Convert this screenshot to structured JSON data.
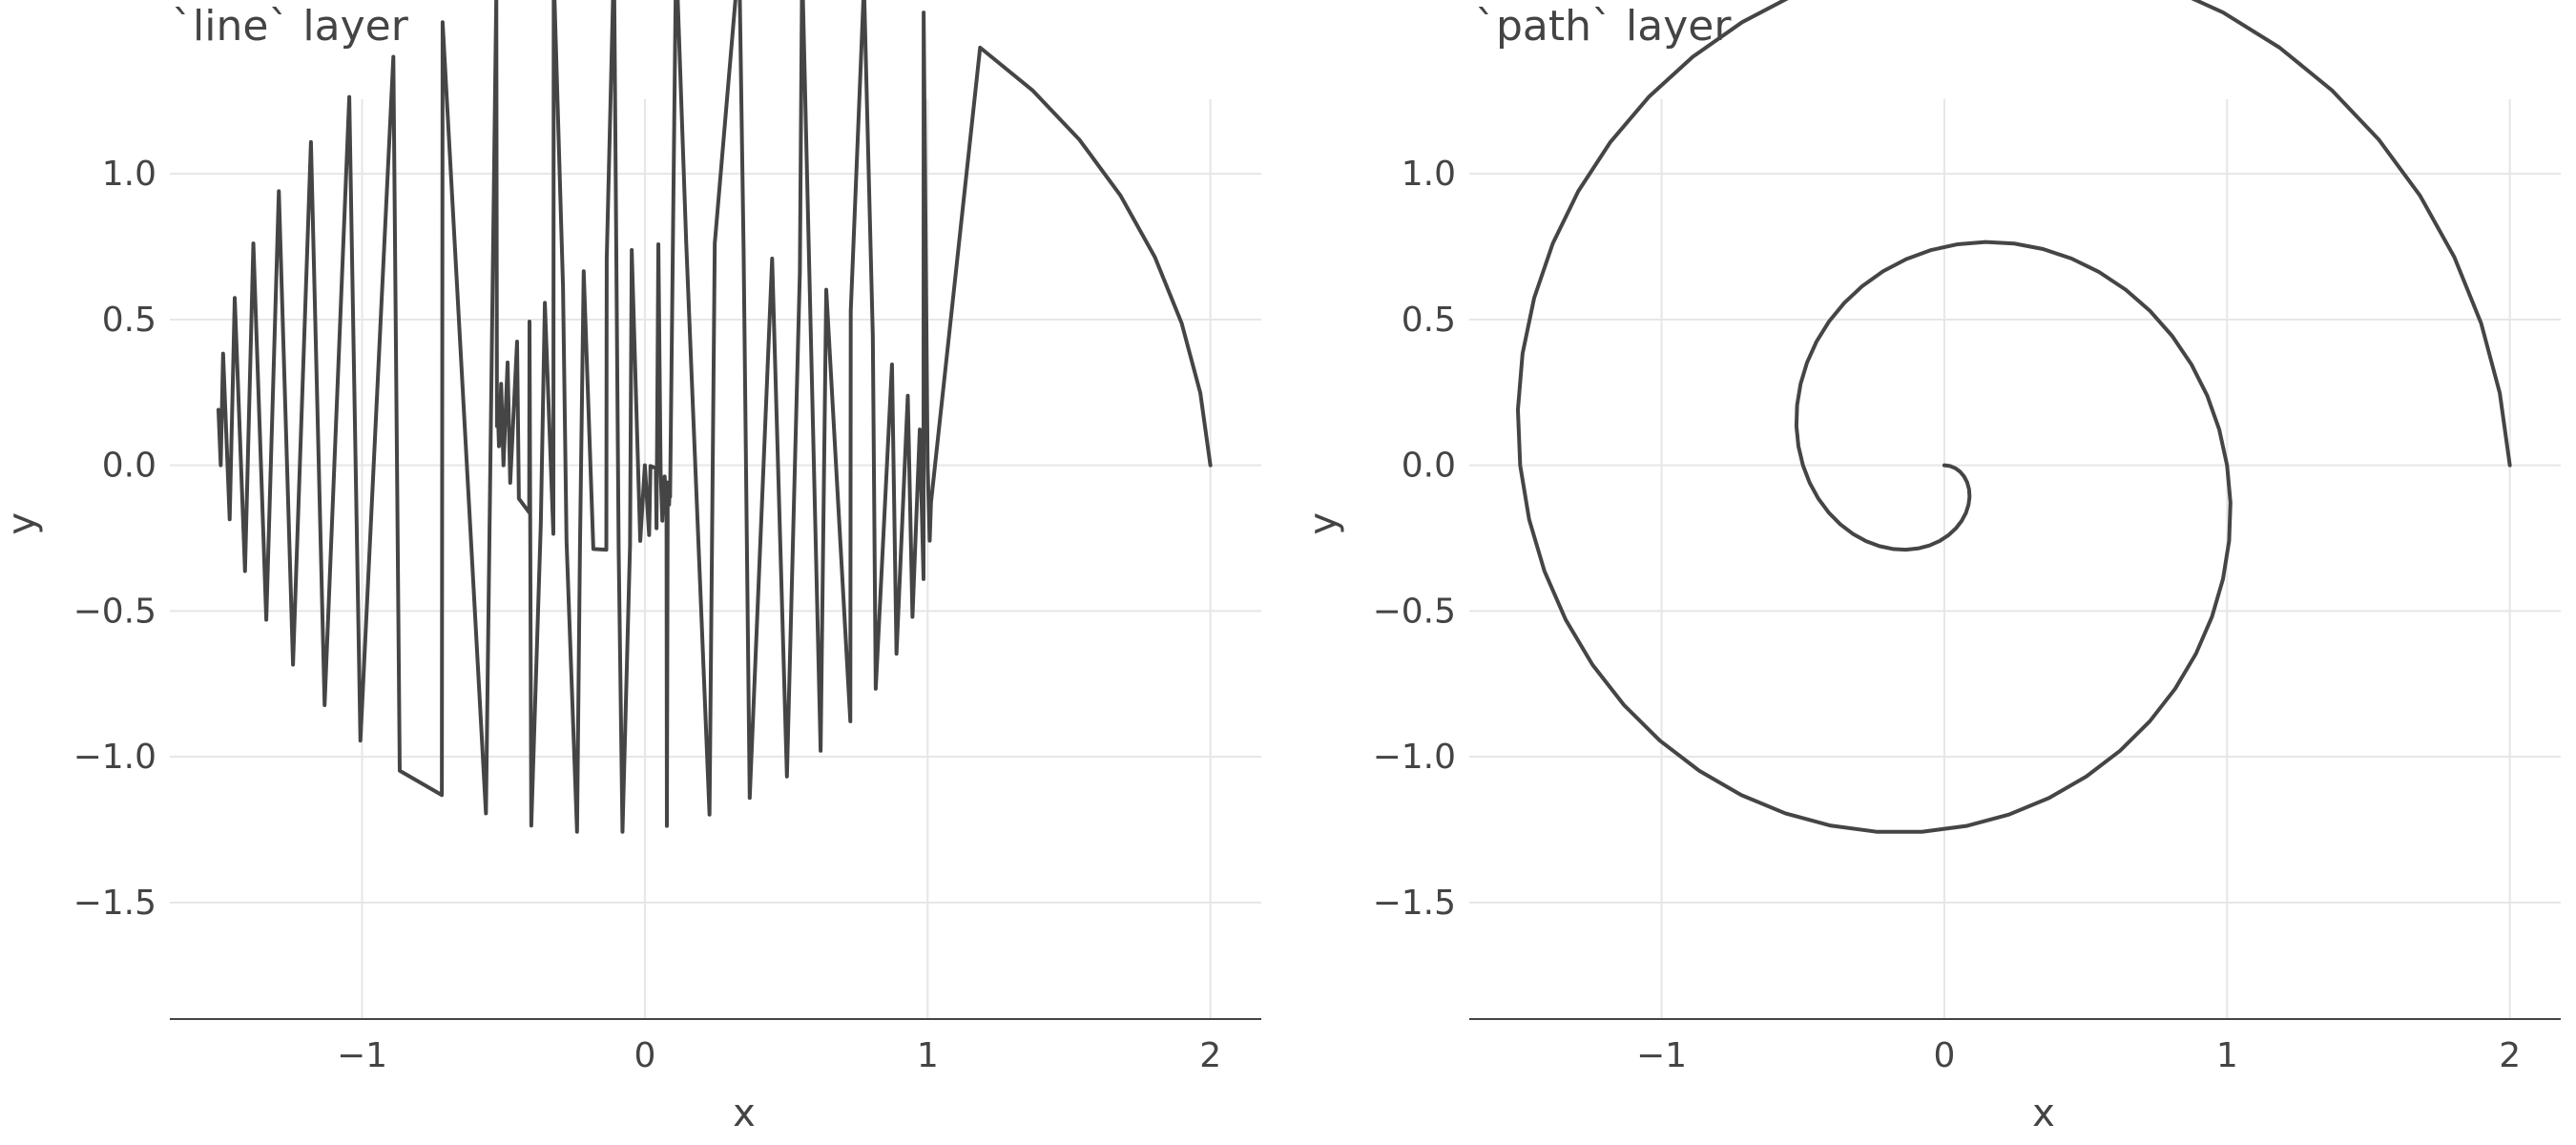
{
  "chart_data": [
    {
      "type": "line",
      "title": "`line` layer",
      "xlabel": "x",
      "ylabel": "y",
      "xlim": [
        -1.68,
        2.18
      ],
      "ylim": [
        -1.9,
        1.4
      ],
      "xticks": [
        -1,
        0,
        1,
        2
      ],
      "yticks": [
        -1.5,
        -1.0,
        -0.5,
        0.0,
        0.5,
        1.0
      ],
      "xtick_labels": [
        "−1",
        "0",
        "1",
        "2"
      ],
      "ytick_labels": [
        "−1.5",
        "−1.0",
        "−0.5",
        "0.0",
        "0.5",
        "1.0"
      ],
      "grid": true,
      "line_color": "#454545",
      "series": [
        {
          "description_of_values": "spiral points x = r·cos(t), y = r·sin(t) with r = 2 − t/(2π) for t in [0, 4π], joined in order of increasing x",
          "r_start": 2,
          "t_end_turns": 2,
          "n_points": 101
        }
      ]
    },
    {
      "type": "line",
      "title": "`path` layer",
      "xlabel": "x",
      "ylabel": "y",
      "xlim": [
        -1.68,
        2.18
      ],
      "ylim": [
        -1.9,
        1.4
      ],
      "xticks": [
        -1,
        0,
        1,
        2
      ],
      "yticks": [
        -1.5,
        -1.0,
        -0.5,
        0.0,
        0.5,
        1.0
      ],
      "xtick_labels": [
        "−1",
        "0",
        "1",
        "2"
      ],
      "ytick_labels": [
        "−1.5",
        "−1.0",
        "−0.5",
        "0.0",
        "0.5",
        "1.0"
      ],
      "grid": true,
      "line_color": "#454545",
      "series": [
        {
          "description_of_values": "spiral points x = r·cos(t), y = r·sin(t) with r = 2 − t/(2π) for t in [0, 4π], joined in data order",
          "r_start": 2,
          "t_end_turns": 2,
          "n_points": 101
        }
      ]
    }
  ]
}
